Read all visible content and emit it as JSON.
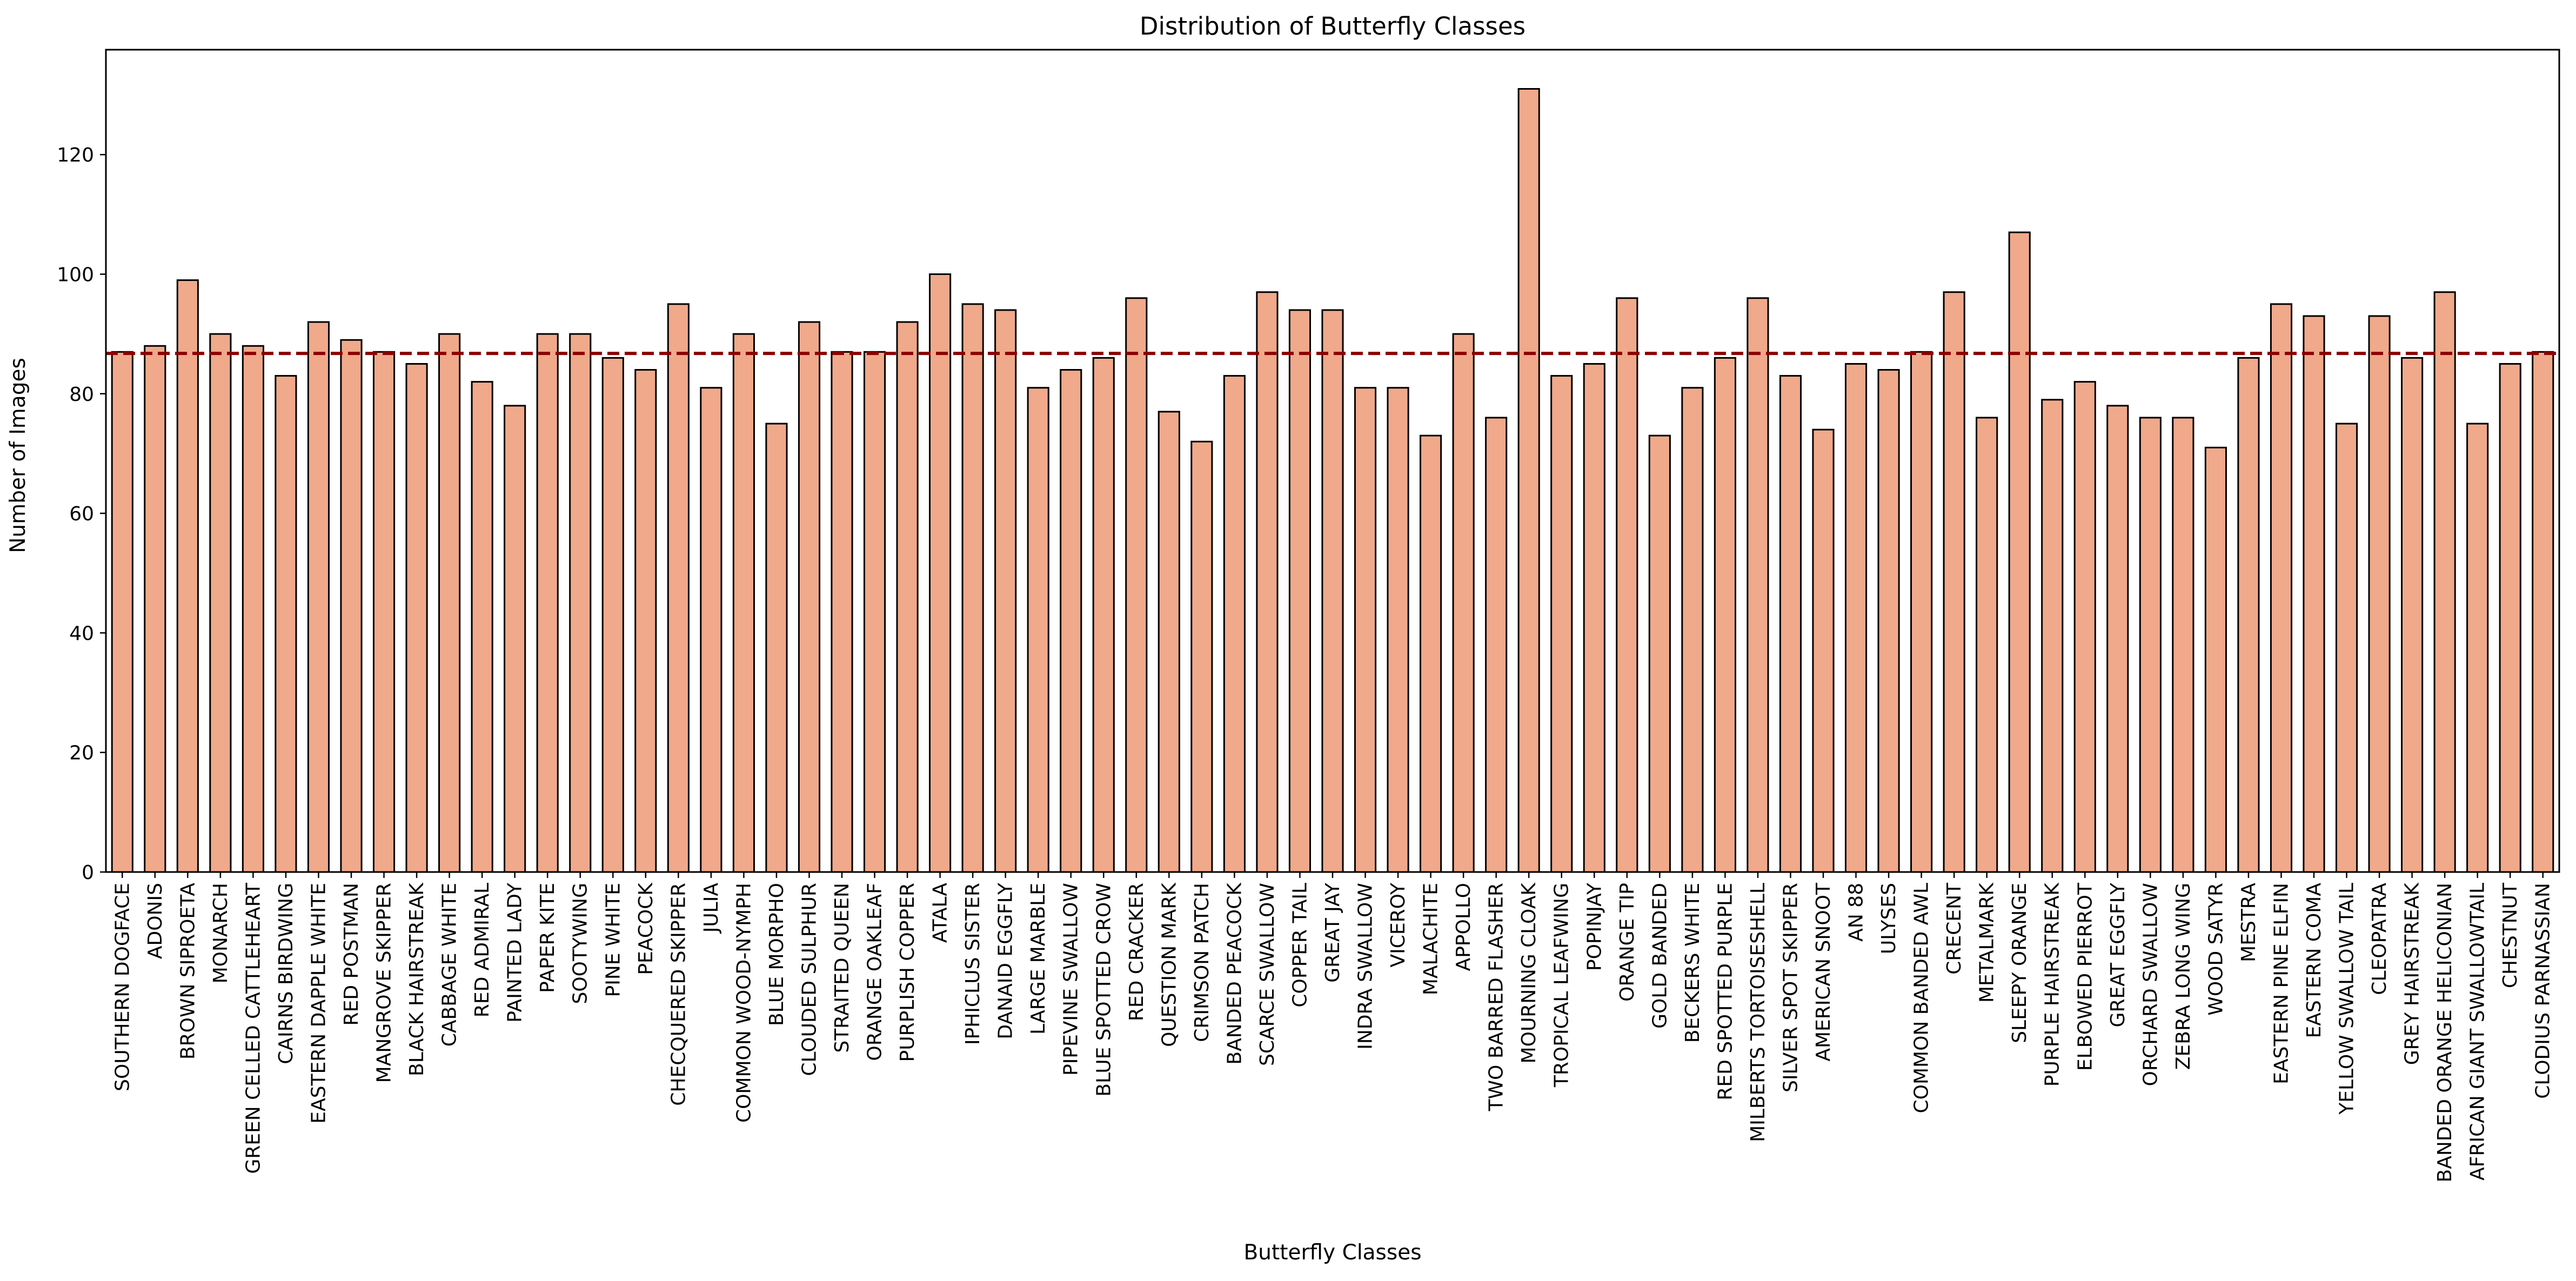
{
  "chart_data": {
    "type": "bar",
    "title": "Distribution of Butterfly Classes",
    "xlabel": "Butterfly Classes",
    "ylabel": "Number of Images",
    "ylim": [
      0,
      137.55
    ],
    "yticks": [
      0,
      20,
      40,
      60,
      80,
      100,
      120
    ],
    "grid": false,
    "reference_line": {
      "value": 86.75,
      "style": "dashed",
      "color": "#8b0000"
    },
    "colors": {
      "bar_fill": "#f0a98a",
      "bar_edge": "#000000"
    },
    "categories": [
      "SOUTHERN DOGFACE",
      "ADONIS",
      "BROWN SIPROETA",
      "MONARCH",
      "GREEN CELLED CATTLEHEART",
      "CAIRNS BIRDWING",
      "EASTERN DAPPLE WHITE",
      "RED POSTMAN",
      "MANGROVE SKIPPER",
      "BLACK HAIRSTREAK",
      "CABBAGE WHITE",
      "RED ADMIRAL",
      "PAINTED LADY",
      "PAPER KITE",
      "SOOTYWING",
      "PINE WHITE",
      "PEACOCK",
      "CHECQUERED SKIPPER",
      "JULIA",
      "COMMON WOOD-NYMPH",
      "BLUE MORPHO",
      "CLOUDED SULPHUR",
      "STRAITED QUEEN",
      "ORANGE OAKLEAF",
      "PURPLISH COPPER",
      "ATALA",
      "IPHICLUS SISTER",
      "DANAID EGGFLY",
      "LARGE MARBLE",
      "PIPEVINE SWALLOW",
      "BLUE SPOTTED CROW",
      "RED CRACKER",
      "QUESTION MARK",
      "CRIMSON PATCH",
      "BANDED PEACOCK",
      "SCARCE SWALLOW",
      "COPPER TAIL",
      "GREAT JAY",
      "INDRA SWALLOW",
      "VICEROY",
      "MALACHITE",
      "APPOLLO",
      "TWO BARRED FLASHER",
      "MOURNING CLOAK",
      "TROPICAL LEAFWING",
      "POPINJAY",
      "ORANGE TIP",
      "GOLD BANDED",
      "BECKERS WHITE",
      "RED SPOTTED PURPLE",
      "MILBERTS TORTOISESHELL",
      "SILVER SPOT SKIPPER",
      "AMERICAN SNOOT",
      "AN 88",
      "ULYSES",
      "COMMON BANDED AWL",
      "CRECENT",
      "METALMARK",
      "SLEEPY ORANGE",
      "PURPLE HAIRSTREAK",
      "ELBOWED PIERROT",
      "GREAT EGGFLY",
      "ORCHARD SWALLOW",
      "ZEBRA LONG WING",
      "WOOD SATYR",
      "MESTRA",
      "EASTERN PINE ELFIN",
      "EASTERN COMA",
      "YELLOW SWALLOW TAIL",
      "CLEOPATRA",
      "GREY HAIRSTREAK",
      "BANDED ORANGE HELICONIAN",
      "AFRICAN GIANT SWALLOWTAIL",
      "CHESTNUT",
      "CLODIUS PARNASSIAN"
    ],
    "values": [
      87,
      88,
      99,
      90,
      88,
      83,
      92,
      89,
      87,
      85,
      90,
      82,
      78,
      90,
      90,
      86,
      84,
      95,
      81,
      90,
      75,
      92,
      87,
      87,
      92,
      100,
      95,
      94,
      81,
      84,
      86,
      96,
      77,
      72,
      83,
      97,
      94,
      94,
      81,
      81,
      73,
      90,
      76,
      131,
      83,
      85,
      96,
      73,
      81,
      86,
      96,
      83,
      74,
      85,
      84,
      87,
      97,
      76,
      107,
      79,
      82,
      78,
      76,
      76,
      71,
      86,
      95,
      93,
      75,
      93,
      86,
      97,
      75,
      85,
      87
    ]
  }
}
